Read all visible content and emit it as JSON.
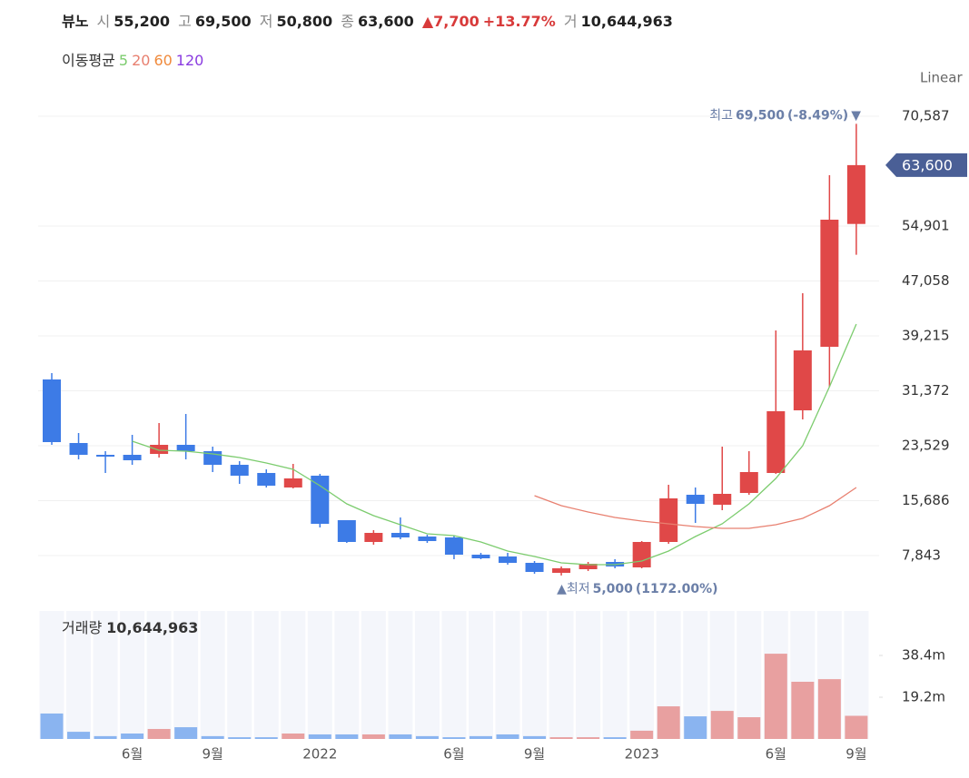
{
  "header": {
    "name": "뷰노",
    "open_label": "시",
    "open": "55,200",
    "high_label": "고",
    "high": "69,500",
    "low_label": "저",
    "low": "50,800",
    "close_label": "종",
    "close": "63,600",
    "change_marker": "▲",
    "change": "7,700",
    "change_pct": "+13.77%",
    "volume_label": "거",
    "volume": "10,644,963",
    "ma_label": "이동평균",
    "scale": "Linear"
  },
  "chart_data": [
    {
      "type": "candlestick",
      "up_color": "#e04848",
      "down_color": "#3d7be6",
      "open": [
        32993,
        23918,
        22233,
        22233,
        22363,
        23659,
        22752,
        20807,
        19640,
        17566,
        19251,
        12899,
        9788,
        11084,
        10565,
        10436,
        7973,
        7713,
        6806,
        5380,
        5898,
        6935,
        6157,
        9788,
        16529,
        15103,
        16788,
        19640,
        28585,
        37660,
        55200
      ],
      "high": [
        33900,
        25344,
        22752,
        25085,
        26770,
        28067,
        23399,
        21326,
        20159,
        20936,
        19511,
        12899,
        11473,
        13288,
        10825,
        10695,
        8232,
        8232,
        7065,
        6287,
        6935,
        7324,
        9917,
        17955,
        17566,
        23399,
        22752,
        39994,
        45309,
        62162,
        69500
      ],
      "low": [
        23659,
        21585,
        19640,
        20807,
        21844,
        21585,
        19770,
        18085,
        17566,
        17436,
        11862,
        9658,
        9399,
        10176,
        9658,
        7324,
        7324,
        6547,
        5250,
        5000,
        5639,
        6028,
        6028,
        9528,
        12510,
        14325,
        16529,
        19511,
        27289,
        31956,
        50800
      ],
      "close": [
        24048,
        22233,
        21974,
        21455,
        23659,
        22752,
        20807,
        19251,
        17825,
        18862,
        12380,
        9788,
        11084,
        10436,
        9917,
        7973,
        7454,
        6806,
        5509,
        6028,
        6676,
        6287,
        9788,
        16010,
        15233,
        16659,
        19770,
        28456,
        37142,
        55810,
        63600
      ],
      "series": [
        {
          "name": "5",
          "color": "#7ccc6e",
          "values": [
            null,
            null,
            null,
            24178,
            22881,
            22752,
            22363,
            21844,
            21066,
            20159,
            17825,
            15232,
            13547,
            12251,
            10954,
            10695,
            9788,
            8491,
            7713,
            6806,
            6547,
            6547,
            7065,
            8491,
            10565,
            12380,
            15232,
            18862,
            23529,
            31956,
            40901
          ]
        },
        {
          "name": "20",
          "color": "#e88070",
          "values": [
            null,
            null,
            null,
            null,
            null,
            null,
            null,
            null,
            null,
            null,
            null,
            null,
            null,
            null,
            null,
            null,
            null,
            null,
            16399,
            14973,
            14066,
            13288,
            12769,
            12380,
            11991,
            11732,
            11732,
            12251,
            13158,
            14973,
            17566
          ]
        },
        {
          "name": "60",
          "color": "#f08a3c",
          "values": [
            null,
            null,
            null,
            null,
            null,
            null,
            null,
            null,
            null,
            null,
            null,
            null,
            null,
            null,
            null,
            null,
            null,
            null,
            null,
            null,
            null,
            null,
            null,
            null,
            null,
            null,
            null,
            null,
            null,
            null,
            null
          ]
        },
        {
          "name": "120",
          "color": "#8a3ce0",
          "values": [
            null,
            null,
            null,
            null,
            null,
            null,
            null,
            null,
            null,
            null,
            null,
            null,
            null,
            null,
            null,
            null,
            null,
            null,
            null,
            null,
            null,
            null,
            null,
            null,
            null,
            null,
            null,
            null,
            null,
            null,
            null
          ]
        }
      ],
      "ylim": [
        972,
        74217
      ],
      "yticks": [
        {
          "value": 7843,
          "label": "7,843"
        },
        {
          "value": 15686,
          "label": "15,686"
        },
        {
          "value": 23529,
          "label": "23,529"
        },
        {
          "value": 31372,
          "label": "31,372"
        },
        {
          "value": 39215,
          "label": "39,215"
        },
        {
          "value": 47058,
          "label": "47,058"
        },
        {
          "value": 54901,
          "label": "54,901"
        },
        {
          "value": 70587,
          "label": "70,587"
        }
      ],
      "grid": true,
      "last_price": {
        "value": 63600,
        "label": "63,600"
      },
      "annotations": {
        "high": {
          "label": "최고",
          "value": "69,500",
          "change": "(-8.49%)",
          "marker": "▼"
        },
        "low": {
          "marker": "▲",
          "label": "최저",
          "value": "5,000",
          "change": "(1172.00%)"
        }
      }
    },
    {
      "type": "bar",
      "title": "거래량",
      "title_value": "10,644,963",
      "up_color": "#e8a0a0",
      "down_color": "#8ab4f0",
      "categories": [
        null,
        null,
        null,
        "6월",
        null,
        null,
        "9월",
        null,
        null,
        null,
        "2022",
        null,
        null,
        null,
        null,
        "6월",
        null,
        null,
        "9월",
        null,
        null,
        null,
        "2023",
        null,
        null,
        null,
        null,
        "6월",
        null,
        null,
        "9월"
      ],
      "values": [
        11700000,
        3300000,
        1300000,
        2500000,
        4600000,
        5400000,
        1300000,
        800000,
        800000,
        2500000,
        2100000,
        2100000,
        2100000,
        2100000,
        1300000,
        800000,
        1300000,
        2100000,
        1300000,
        800000,
        800000,
        800000,
        3800000,
        15000000,
        10400000,
        12900000,
        10000000,
        39200000,
        26300000,
        27500000,
        10644963
      ],
      "ylim": [
        0,
        58850000
      ],
      "yticks": [
        {
          "value": 19200000,
          "label": "19.2m"
        },
        {
          "value": 38400000,
          "label": "38.4m"
        }
      ]
    }
  ]
}
